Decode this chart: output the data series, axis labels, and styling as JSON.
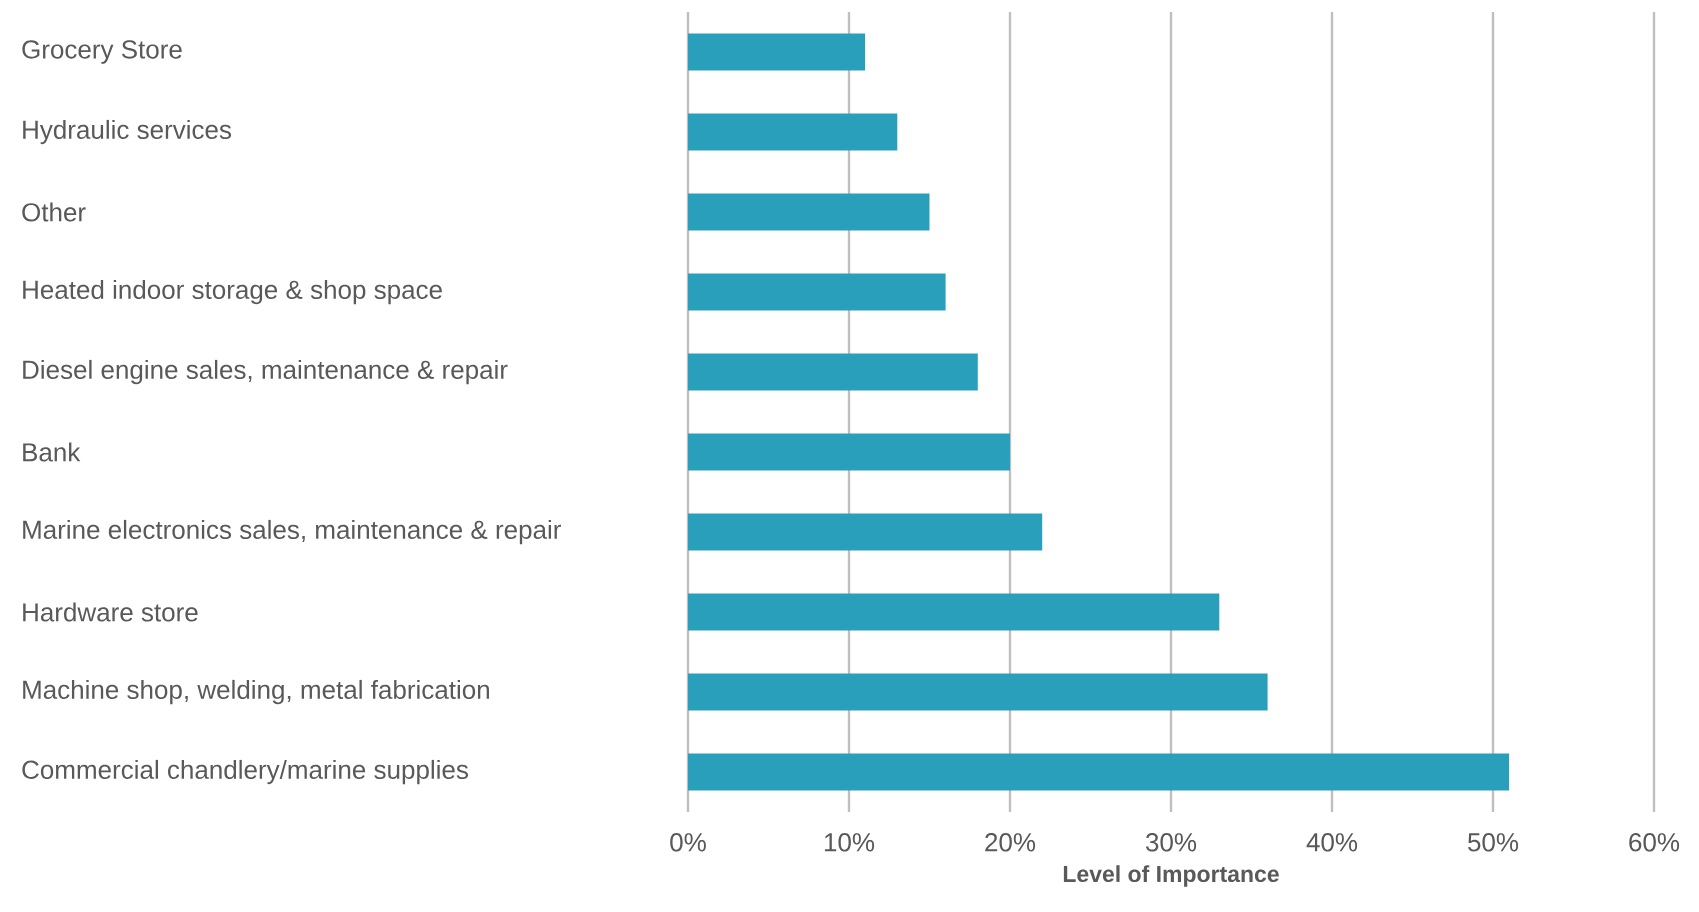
{
  "chart_data": {
    "type": "bar",
    "orientation": "horizontal",
    "categories": [
      "Grocery Store",
      "Hydraulic services",
      "Other",
      "Heated indoor storage & shop space",
      "Diesel engine sales, maintenance & repair",
      "Bank",
      "Marine electronics sales, maintenance & repair",
      "Hardware store",
      "Machine shop, welding, metal fabrication",
      "Commercial chandlery/marine supplies"
    ],
    "values": [
      11,
      13,
      15,
      16,
      18,
      20,
      22,
      33,
      36,
      51
    ],
    "color": "#2a9fbc",
    "xlabel": "Level of Importance",
    "xlim": [
      0,
      60
    ],
    "xticks": [
      {
        "value": 0,
        "label": "0%"
      },
      {
        "value": 10,
        "label": "10%"
      },
      {
        "value": 20,
        "label": "20%"
      },
      {
        "value": 30,
        "label": "30%"
      },
      {
        "value": 40,
        "label": "40%"
      },
      {
        "value": 50,
        "label": "50%"
      },
      {
        "value": 60,
        "label": "60%"
      }
    ],
    "grid": "x"
  }
}
